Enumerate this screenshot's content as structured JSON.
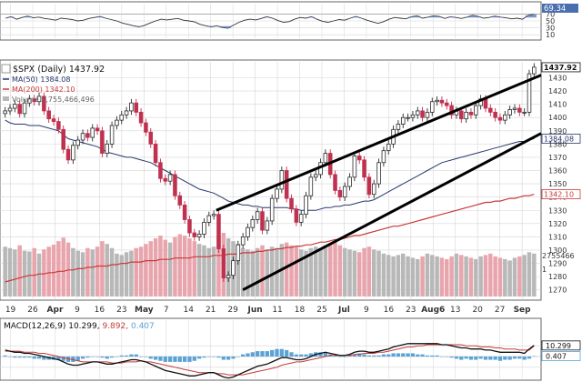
{
  "header": {
    "symbol": "$SPX",
    "period": "(Daily)",
    "last": "1437.92"
  },
  "legend": {
    "ma50": "MA(50) 1384.08",
    "ma200": "MA(200) 1342.10",
    "volume": "Volume 2,755,466,496",
    "macd_label": "MACD(12,26,9)",
    "macd_value": "10.299,",
    "signal_value": "9.892,",
    "hist_value": "0.407"
  },
  "colors": {
    "up": "#2a2a2a",
    "down": "#c0304f",
    "ma50": "#27376e",
    "ma200": "#c83a3a",
    "vol_up": "#b8b8b8",
    "vol_down": "#e8a5ad",
    "hist": "#5aa3d4",
    "grid": "#d6d6d6",
    "trendline": "#000000",
    "rsi_fill": "#4a6fb0"
  },
  "chart_data": [
    {
      "type": "line",
      "name": "RSI panel",
      "yticks": [
        70,
        50,
        30,
        10
      ],
      "last_label": "69.34",
      "overbought": 70,
      "oversold": 30,
      "values": [
        58,
        62,
        55,
        60,
        64,
        59,
        61,
        57,
        55,
        52,
        58,
        56,
        54,
        50,
        52,
        57,
        60,
        63,
        58,
        54,
        50,
        44,
        40,
        36,
        33,
        37,
        44,
        50,
        55,
        53,
        55,
        57,
        52,
        50,
        47,
        40,
        36,
        33,
        36,
        31,
        29,
        38,
        46,
        52,
        55,
        53,
        57,
        62,
        58,
        51,
        46,
        48,
        55,
        60,
        58,
        62,
        55,
        49,
        46,
        50,
        54,
        52,
        58,
        63,
        58,
        52,
        47,
        43,
        48,
        55,
        60,
        58,
        56,
        62,
        65,
        58,
        61,
        65,
        63,
        57,
        62,
        60,
        57,
        61,
        66,
        63,
        58,
        60,
        64,
        61,
        59,
        56,
        58,
        55,
        66,
        69
      ]
    },
    {
      "type": "candlestick",
      "name": "$SPX (Daily)",
      "y_axis_labels": [
        "1437.92",
        "1430",
        "1420",
        "1410",
        "1400",
        "1390",
        "1384.08",
        "1380",
        "1370",
        "1360",
        "1350",
        "1340",
        "1342.10",
        "1330",
        "1320",
        "1310",
        "1300",
        "1290",
        "1280",
        "1270"
      ],
      "yticks": [
        1430,
        1420,
        1410,
        1400,
        1390,
        1380,
        1370,
        1360,
        1350,
        1340,
        1330,
        1320,
        1310,
        1300,
        1290,
        1280,
        1270
      ],
      "ylim": [
        1265,
        1442
      ],
      "x_tick_labels": [
        "19",
        "26",
        "Apr",
        "9",
        "16",
        "23",
        "May",
        "7",
        "14",
        "21",
        "29",
        "Jun",
        "11",
        "18",
        "25",
        "Jul",
        "9",
        "16",
        "23",
        "Aug6",
        "13",
        "20",
        "27",
        "Sep"
      ],
      "close": [
        1405,
        1407,
        1410,
        1403,
        1411,
        1414,
        1412,
        1416,
        1405,
        1399,
        1397,
        1391,
        1376,
        1368,
        1379,
        1383,
        1388,
        1385,
        1392,
        1390,
        1373,
        1380,
        1394,
        1398,
        1402,
        1405,
        1411,
        1404,
        1396,
        1389,
        1380,
        1366,
        1354,
        1352,
        1357,
        1341,
        1334,
        1323,
        1313,
        1310,
        1312,
        1321,
        1326,
        1327,
        1301,
        1279,
        1281,
        1292,
        1304,
        1310,
        1317,
        1323,
        1329,
        1315,
        1322,
        1339,
        1346,
        1360,
        1339,
        1331,
        1321,
        1327,
        1341,
        1355,
        1357,
        1366,
        1373,
        1357,
        1345,
        1340,
        1348,
        1355,
        1371,
        1368,
        1355,
        1342,
        1350,
        1366,
        1375,
        1380,
        1391,
        1395,
        1400,
        1400,
        1402,
        1405,
        1400,
        1404,
        1412,
        1413,
        1411,
        1409,
        1402,
        1405,
        1399,
        1404,
        1402,
        1409,
        1414,
        1407,
        1404,
        1400,
        1398,
        1402,
        1406,
        1407,
        1404,
        1404,
        1433,
        1438
      ],
      "ma50": [
        1398,
        1396,
        1395,
        1395,
        1395,
        1394,
        1394,
        1394,
        1393,
        1392,
        1391,
        1390,
        1387,
        1384,
        1383,
        1382,
        1381,
        1380,
        1379,
        1378,
        1376,
        1374,
        1373,
        1372,
        1371,
        1370,
        1370,
        1369,
        1368,
        1367,
        1366,
        1364,
        1362,
        1360,
        1358,
        1356,
        1354,
        1352,
        1350,
        1348,
        1346,
        1345,
        1344,
        1343,
        1341,
        1339,
        1337,
        1336,
        1335,
        1334,
        1334,
        1333,
        1333,
        1332,
        1332,
        1332,
        1332,
        1332,
        1332,
        1331,
        1331,
        1330,
        1330,
        1330,
        1330,
        1331,
        1332,
        1332,
        1333,
        1333,
        1334,
        1334,
        1335,
        1336,
        1337,
        1337,
        1338,
        1340,
        1342,
        1344,
        1346,
        1348,
        1350,
        1352,
        1354,
        1356,
        1358,
        1360,
        1362,
        1364,
        1366,
        1367,
        1368,
        1369,
        1370,
        1371,
        1372,
        1373,
        1374,
        1375,
        1376,
        1377,
        1378,
        1379,
        1380,
        1381,
        1382,
        1382,
        1383,
        1384.08
      ],
      "ma200": [
        1276,
        1277,
        1278,
        1279,
        1280,
        1281,
        1281,
        1282,
        1282,
        1283,
        1283,
        1284,
        1284,
        1285,
        1285,
        1286,
        1286,
        1287,
        1287,
        1288,
        1288,
        1288,
        1289,
        1289,
        1290,
        1290,
        1291,
        1291,
        1291,
        1292,
        1292,
        1292,
        1293,
        1293,
        1293,
        1294,
        1294,
        1294,
        1294,
        1295,
        1295,
        1295,
        1295,
        1296,
        1296,
        1296,
        1297,
        1297,
        1297,
        1298,
        1298,
        1298,
        1299,
        1299,
        1300,
        1300,
        1301,
        1301,
        1302,
        1302,
        1303,
        1303,
        1304,
        1304,
        1305,
        1306,
        1306,
        1307,
        1308,
        1308,
        1309,
        1310,
        1311,
        1311,
        1312,
        1313,
        1314,
        1315,
        1316,
        1317,
        1318,
        1318,
        1319,
        1320,
        1321,
        1322,
        1323,
        1324,
        1325,
        1326,
        1327,
        1328,
        1329,
        1330,
        1331,
        1332,
        1333,
        1334,
        1335,
        1336,
        1336,
        1337,
        1337,
        1338,
        1339,
        1339,
        1340,
        1341,
        1341,
        1342.1
      ],
      "trend_upper": {
        "x": [
          0.0,
          1.0
        ],
        "y": [
          1330,
          1432
        ]
      },
      "trend_lower": {
        "x": [
          0.0,
          1.0
        ],
        "y": [
          1270,
          1388
        ]
      }
    },
    {
      "type": "bar",
      "name": "Volume",
      "y_axis_labels": [
        "2755466",
        "1"
      ],
      "values": [
        72,
        70,
        68,
        74,
        66,
        65,
        70,
        62,
        68,
        72,
        75,
        80,
        85,
        78,
        70,
        66,
        64,
        70,
        68,
        72,
        80,
        76,
        70,
        62,
        60,
        64,
        66,
        70,
        72,
        76,
        80,
        84,
        88,
        82,
        78,
        86,
        90,
        88,
        84,
        80,
        76,
        74,
        70,
        72,
        88,
        92,
        84,
        80,
        76,
        70,
        68,
        66,
        70,
        74,
        68,
        72,
        70,
        76,
        78,
        74,
        72,
        68,
        66,
        70,
        72,
        70,
        74,
        76,
        78,
        74,
        70,
        68,
        66,
        64,
        70,
        72,
        68,
        66,
        62,
        60,
        58,
        60,
        62,
        58,
        56,
        54,
        58,
        62,
        60,
        58,
        56,
        54,
        58,
        62,
        60,
        58,
        56,
        54,
        58,
        60,
        62,
        58,
        56,
        54,
        52,
        56,
        58,
        60,
        64,
        62
      ]
    },
    {
      "type": "line",
      "name": "MACD(12,26,9)",
      "y_axis_labels": [
        "10.299",
        "0.407"
      ],
      "macd": [
        6,
        5,
        4,
        4,
        3,
        3,
        2,
        1,
        0,
        -1,
        -2,
        -3,
        -5,
        -7,
        -8,
        -8,
        -7,
        -6,
        -5,
        -5,
        -6,
        -7,
        -7,
        -6,
        -5,
        -4,
        -3,
        -3,
        -4,
        -5,
        -7,
        -9,
        -11,
        -13,
        -14,
        -15,
        -16,
        -17,
        -18,
        -18,
        -17,
        -16,
        -15,
        -15,
        -17,
        -19,
        -20,
        -19,
        -17,
        -15,
        -13,
        -11,
        -9,
        -8,
        -7,
        -5,
        -3,
        -1,
        -1,
        -2,
        -3,
        -3,
        -2,
        0,
        2,
        3,
        4,
        3,
        2,
        1,
        1,
        2,
        4,
        5,
        5,
        4,
        4,
        5,
        6,
        7,
        9,
        10,
        11,
        12,
        12,
        12,
        12,
        12,
        12,
        12,
        11,
        11,
        10,
        9,
        8,
        8,
        7,
        7,
        7,
        6,
        6,
        5,
        4,
        4,
        4,
        4,
        4,
        3,
        7,
        10.3
      ],
      "signal": [
        5,
        5,
        5,
        5,
        4,
        4,
        4,
        3,
        3,
        2,
        1,
        0,
        -1,
        -2,
        -3,
        -4,
        -5,
        -5,
        -5,
        -5,
        -5,
        -5,
        -6,
        -6,
        -6,
        -5,
        -5,
        -5,
        -4,
        -5,
        -5,
        -6,
        -7,
        -8,
        -9,
        -10,
        -11,
        -12,
        -13,
        -14,
        -15,
        -15,
        -15,
        -15,
        -16,
        -16,
        -17,
        -17,
        -17,
        -17,
        -16,
        -15,
        -14,
        -13,
        -12,
        -11,
        -10,
        -8,
        -7,
        -6,
        -5,
        -5,
        -4,
        -3,
        -2,
        -1,
        0,
        1,
        1,
        1,
        1,
        1,
        2,
        2,
        3,
        3,
        3,
        4,
        4,
        5,
        6,
        7,
        8,
        9,
        9,
        10,
        10,
        11,
        11,
        11,
        11,
        11,
        11,
        11,
        11,
        10,
        10,
        10,
        9,
        9,
        9,
        8,
        8,
        7,
        7,
        7,
        6,
        6,
        6,
        9.9
      ],
      "hist": [
        1,
        0,
        -1,
        -1,
        -1,
        -1,
        -2,
        -2,
        -3,
        -3,
        -3,
        -3,
        -4,
        -5,
        -5,
        -4,
        -2,
        -1,
        0,
        0,
        -1,
        -2,
        -1,
        0,
        1,
        1,
        2,
        2,
        0,
        0,
        -2,
        -3,
        -4,
        -5,
        -5,
        -5,
        -5,
        -5,
        -5,
        -4,
        -2,
        -1,
        0,
        0,
        -1,
        -3,
        -3,
        -2,
        0,
        2,
        3,
        4,
        5,
        5,
        5,
        6,
        7,
        7,
        6,
        4,
        2,
        2,
        2,
        3,
        4,
        4,
        4,
        2,
        1,
        0,
        0,
        1,
        2,
        3,
        2,
        1,
        1,
        1,
        2,
        2,
        3,
        3,
        3,
        3,
        3,
        2,
        2,
        1,
        1,
        1,
        0,
        0,
        -1,
        -2,
        -3,
        -2,
        -3,
        -3,
        -2,
        -3,
        -3,
        -3,
        -4,
        -3,
        -3,
        -2,
        -2,
        -3,
        -2,
        0.4
      ]
    }
  ]
}
